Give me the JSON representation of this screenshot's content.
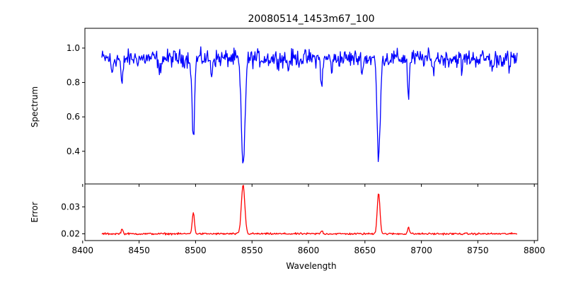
{
  "chart_data": [
    {
      "type": "line",
      "title": "20080514_1453m67_100",
      "xlabel": "",
      "ylabel": "Spectrum",
      "xlim": [
        8402,
        8803
      ],
      "ylim": [
        0.21,
        1.115
      ],
      "xticks": [
        8400,
        8450,
        8500,
        8550,
        8600,
        8650,
        8700,
        8750,
        8800
      ],
      "yticks": [
        0.4,
        0.6,
        0.8,
        1.0
      ],
      "ytick_labels": [
        "0.4",
        "0.6",
        "0.8",
        "1.0"
      ],
      "series": [
        {
          "color": "#0000ff",
          "baseline": 0.94,
          "x_range": [
            8417,
            8785
          ],
          "absorption_lines": [
            {
              "center": 8498.0,
              "depth": 0.47,
              "width": 1.1
            },
            {
              "center": 8542.1,
              "depth": 0.63,
              "width": 1.6
            },
            {
              "center": 8662.1,
              "depth": 0.6,
              "width": 1.3
            },
            {
              "center": 8688.6,
              "depth": 0.22,
              "width": 0.8
            },
            {
              "center": 8434.9,
              "depth": 0.16,
              "width": 0.9
            },
            {
              "center": 8468.0,
              "depth": 0.1,
              "width": 0.8
            },
            {
              "center": 8514.0,
              "depth": 0.09,
              "width": 0.8
            },
            {
              "center": 8611.8,
              "depth": 0.15,
              "width": 0.9
            },
            {
              "center": 8426.0,
              "depth": 0.09,
              "width": 0.8
            },
            {
              "center": 8582.0,
              "depth": 0.07,
              "width": 0.7
            },
            {
              "center": 8621.0,
              "depth": 0.07,
              "width": 0.7
            },
            {
              "center": 8648.0,
              "depth": 0.07,
              "width": 0.7
            },
            {
              "center": 8710.0,
              "depth": 0.08,
              "width": 0.8
            },
            {
              "center": 8736.0,
              "depth": 0.07,
              "width": 0.7
            },
            {
              "center": 8763.0,
              "depth": 0.08,
              "width": 0.7
            },
            {
              "center": 8778.0,
              "depth": 0.07,
              "width": 0.7
            }
          ]
        }
      ]
    },
    {
      "type": "line",
      "title": "",
      "xlabel": "Wavelength",
      "ylabel": "Error",
      "xlim": [
        8402,
        8803
      ],
      "ylim": [
        0.0175,
        0.0385
      ],
      "xticks": [
        8400,
        8450,
        8500,
        8550,
        8600,
        8650,
        8700,
        8750,
        8800
      ],
      "xtick_labels": [
        "8400",
        "8450",
        "8500",
        "8550",
        "8600",
        "8650",
        "8700",
        "8750",
        "8800"
      ],
      "yticks": [
        0.02,
        0.03
      ],
      "ytick_labels": [
        "0.02",
        "0.03"
      ],
      "series": [
        {
          "color": "#ff0000",
          "baseline": 0.02,
          "x_range": [
            8417,
            8785
          ],
          "emission_peaks": [
            {
              "center": 8542.1,
              "height": 0.0183,
              "width": 1.5
            },
            {
              "center": 8662.1,
              "height": 0.0153,
              "width": 1.2
            },
            {
              "center": 8498.0,
              "height": 0.0078,
              "width": 1.0
            },
            {
              "center": 8688.6,
              "height": 0.0025,
              "width": 0.8
            },
            {
              "center": 8434.9,
              "height": 0.0018,
              "width": 0.8
            },
            {
              "center": 8611.8,
              "height": 0.0012,
              "width": 0.8
            }
          ]
        }
      ]
    }
  ]
}
